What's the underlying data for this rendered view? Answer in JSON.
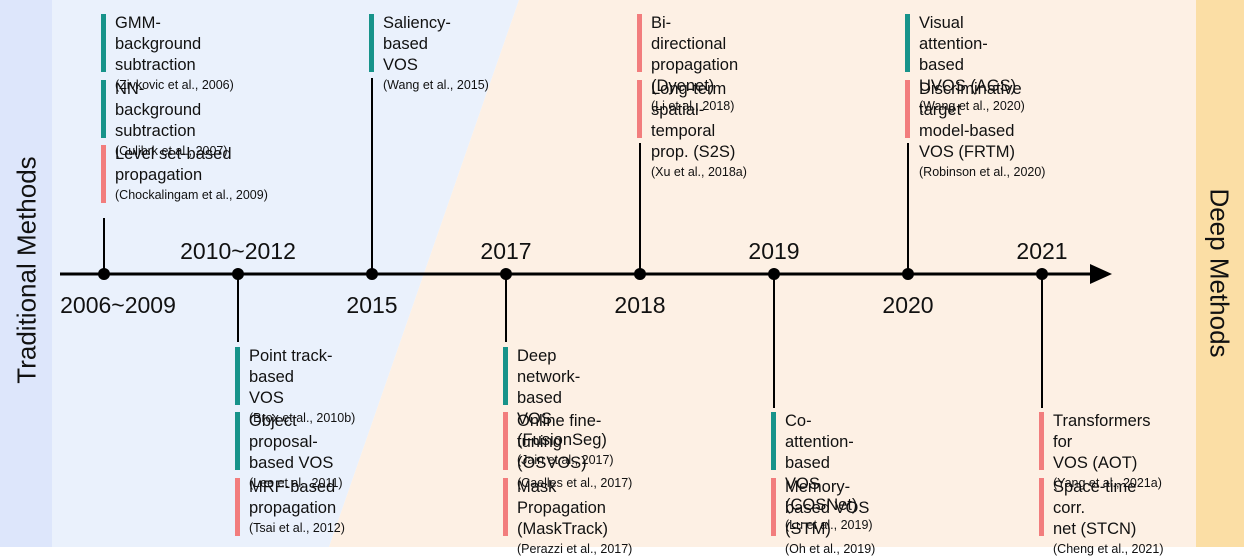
{
  "labels": {
    "left": "Traditional Methods",
    "right": "Deep Methods"
  },
  "colors": {
    "traditional_bg": "#dde6fb",
    "light_blue_bg": "#eaf1fc",
    "light_orange_bg": "#fdf0e4",
    "deep_bg": "#fbdea5",
    "teal": "#17938a",
    "pink": "#f27d7d"
  },
  "years": {
    "y2006": "2006~2009",
    "y2010": "2010~2012",
    "y2015": "2015",
    "y2017": "2017",
    "y2018": "2018",
    "y2019": "2019",
    "y2020": "2020",
    "y2021": "2021"
  },
  "groups": {
    "g2006": [
      {
        "title": "GMM-background\nsubtraction",
        "cite": "(Zivkovic et al., 2006)",
        "color": "teal"
      },
      {
        "title": "NN-background\nsubtraction",
        "cite": "(Culibrk et al., 2007)",
        "color": "teal"
      },
      {
        "title": "Level set-based\npropagation",
        "cite": "(Chockalingam et al., 2009)",
        "color": "pink"
      }
    ],
    "g2010": [
      {
        "title": "Point track-based\nVOS",
        "cite": "(Brox et al., 2010b)",
        "color": "teal"
      },
      {
        "title": "Object proposal-\nbased VOS",
        "cite": "(Lee et al., 2011)",
        "color": "teal"
      },
      {
        "title": "MRF-based\npropagation",
        "cite": "(Tsai et al., 2012)",
        "color": "pink"
      }
    ],
    "g2015": [
      {
        "title": "Saliency-based\nVOS",
        "cite": "(Wang et al., 2015)",
        "color": "teal"
      }
    ],
    "g2017": [
      {
        "title": "Deep network-based\nVOS (FusionSeg)",
        "cite": "(Jain et al., 2017)",
        "color": "teal"
      },
      {
        "title": "Online fine-tuning\n(OSVOS)",
        "cite": "(Caelles et al., 2017)",
        "color": "pink"
      },
      {
        "title": "Mask Propagation\n(MaskTrack)",
        "cite": "(Perazzi et al., 2017)",
        "color": "pink"
      }
    ],
    "g2018": [
      {
        "title": "Bi-directional\npropagation (Dyenet)",
        "cite": "(Li et al., 2018)",
        "color": "pink"
      },
      {
        "title": "Long-term spatial-\ntemporal prop. (S2S)",
        "cite": "(Xu et al., 2018a)",
        "color": "pink"
      }
    ],
    "g2019": [
      {
        "title": "Co-attention-based\nVOS (COSNet)",
        "cite": "(Lu et al., 2019)",
        "color": "teal"
      },
      {
        "title": "Memory-based VOS\n(STM)",
        "cite": "(Oh et al., 2019)",
        "color": "pink"
      }
    ],
    "g2020": [
      {
        "title": "Visual attention-based\nUVOS (AGS)",
        "cite": "(Wang et al., 2020)",
        "color": "teal"
      },
      {
        "title": "Discriminative target\nmodel-based VOS (FRTM)",
        "cite": "(Robinson et al., 2020)",
        "color": "pink"
      }
    ],
    "g2021": [
      {
        "title": "Transformers for\nVOS (AOT)",
        "cite": "(Yang et al., 2021a)",
        "color": "pink"
      },
      {
        "title": "Space-time corr.\nnet (STCN)",
        "cite": "(Cheng et al., 2021)",
        "color": "pink"
      }
    ]
  }
}
